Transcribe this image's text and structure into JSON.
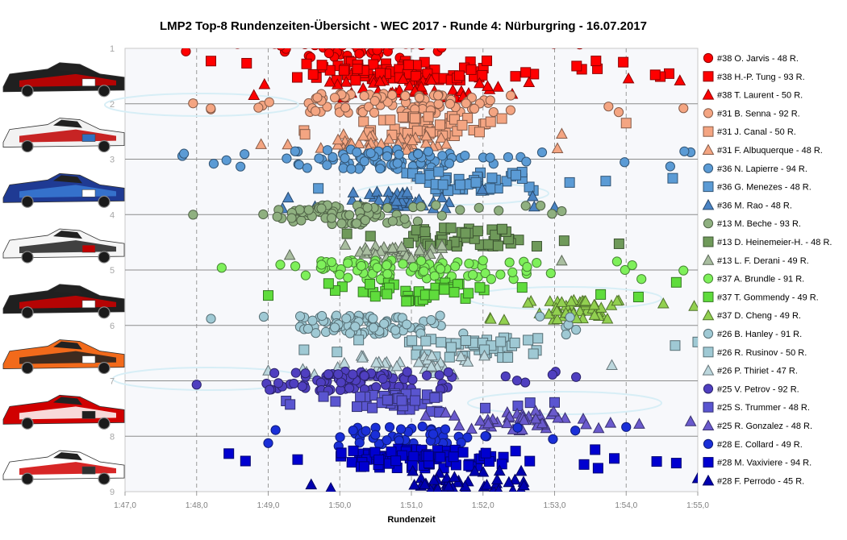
{
  "chart_data": {
    "type": "scatter",
    "title": "LMP2  Top-8  Rundenzeiten-Übersicht  - WEC 2017  - Runde  4:  Nürburgring  - 16.07.2017",
    "xlabel": "Rundenzeit",
    "ylabel": "",
    "x_ticks": [
      "1:47,0",
      "1:48,0",
      "1:49,0",
      "1:50,0",
      "1:51,0",
      "1:52,0",
      "1:53,0",
      "1:54,0",
      "1:55,0"
    ],
    "xlim": [
      107,
      115
    ],
    "y_ticks": [
      "1",
      "2",
      "3",
      "4",
      "5",
      "6",
      "7",
      "8",
      "9"
    ],
    "ylim": [
      1,
      9
    ],
    "grid": true,
    "legend_position": "right",
    "series": [
      {
        "name": "#38 O. Jarvis - 48 R.",
        "color": "#ff0000",
        "marker": "circle",
        "row": 1.0,
        "laps": 48,
        "x_range": [
          107.85,
          113.35
        ]
      },
      {
        "name": "#38 H.-P. Tung - 93 R.",
        "color": "#ff0000",
        "marker": "square",
        "row": 1.4,
        "laps": 93,
        "x_range": [
          108.2,
          114.6
        ]
      },
      {
        "name": "#38 T. Laurent - 50 R.",
        "color": "#ff0000",
        "marker": "triangle",
        "row": 1.72,
        "laps": 50,
        "x_range": [
          108.8,
          114.75
        ]
      },
      {
        "name": "#31 B. Senna - 92 R.",
        "color": "#f4a582",
        "marker": "circle",
        "row": 2.0,
        "laps": 92,
        "x_range": [
          107.95,
          114.8
        ]
      },
      {
        "name": "#31 J. Canal - 50 R.",
        "color": "#f4a582",
        "marker": "square",
        "row": 2.4,
        "laps": 50,
        "x_range": [
          109.5,
          114.0
        ]
      },
      {
        "name": "#31 F. Albuquerque - 48 R.",
        "color": "#f4a582",
        "marker": "triangle",
        "row": 2.72,
        "laps": 48,
        "x_range": [
          108.9,
          113.1
        ]
      },
      {
        "name": "#36 N. Lapierre - 94 R.",
        "color": "#5b9bd5",
        "marker": "circle",
        "row": 3.0,
        "laps": 94,
        "x_range": [
          107.8,
          114.9
        ]
      },
      {
        "name": "#36 G. Menezes - 48 R.",
        "color": "#5b9bd5",
        "marker": "square",
        "row": 3.4,
        "laps": 48,
        "x_range": [
          109.7,
          114.65
        ]
      },
      {
        "name": "#36 M. Rao - 48 R.",
        "color": "#4a84c4",
        "marker": "triangle",
        "row": 3.72,
        "laps": 48,
        "x_range": [
          109.2,
          113.0
        ]
      },
      {
        "name": "#13 M. Beche - 93 R.",
        "color": "#8fb080",
        "marker": "circle",
        "row": 4.0,
        "laps": 93,
        "x_range": [
          107.95,
          113.1
        ]
      },
      {
        "name": "#13 D. Heinemeier-H. - 48 R.",
        "color": "#6f9a5a",
        "marker": "square",
        "row": 4.4,
        "laps": 48,
        "x_range": [
          110.1,
          113.9
        ]
      },
      {
        "name": "#13 L. F. Derani - 49 R.",
        "color": "#a9bea0",
        "marker": "triangle",
        "row": 4.72,
        "laps": 49,
        "x_range": [
          109.3,
          113.1
        ]
      },
      {
        "name": "#37 A. Brundle - 91 R.",
        "color": "#7ef05a",
        "marker": "circle",
        "row": 5.0,
        "laps": 91,
        "x_range": [
          108.35,
          114.8
        ]
      },
      {
        "name": "#37 T. Gommendy - 49 R.",
        "color": "#5fdc3c",
        "marker": "square",
        "row": 5.4,
        "laps": 49,
        "x_range": [
          109.0,
          114.7
        ]
      },
      {
        "name": "#37 D. Cheng - 49 R.",
        "color": "#92d050",
        "marker": "triangle",
        "row": 5.72,
        "laps": 49,
        "x_range": [
          112.1,
          114.95
        ]
      },
      {
        "name": "#26 B. Hanley - 91 R.",
        "color": "#9fc9d4",
        "marker": "circle",
        "row": 6.0,
        "laps": 91,
        "x_range": [
          108.2,
          113.3
        ]
      },
      {
        "name": "#26 R. Rusinov - 50 R.",
        "color": "#9fc9d4",
        "marker": "square",
        "row": 6.4,
        "laps": 50,
        "x_range": [
          109.5,
          115.0
        ]
      },
      {
        "name": "#26 P. Thiriet - 47 R.",
        "color": "#bcd7dd",
        "marker": "triangle",
        "row": 6.72,
        "laps": 47,
        "x_range": [
          109.0,
          113.8
        ]
      },
      {
        "name": "#25 V. Petrov - 92 R.",
        "color": "#4f3fc0",
        "marker": "circle",
        "row": 7.0,
        "laps": 92,
        "x_range": [
          108.0,
          113.3
        ]
      },
      {
        "name": "#25 S. Trummer - 48 R.",
        "color": "#5a55d0",
        "marker": "square",
        "row": 7.4,
        "laps": 48,
        "x_range": [
          109.25,
          113.0
        ]
      },
      {
        "name": "#25 R. Gonzalez - 48 R.",
        "color": "#6a5acd",
        "marker": "triangle",
        "row": 7.72,
        "laps": 48,
        "x_range": [
          111.2,
          114.9
        ]
      },
      {
        "name": "#28 E. Collard - 49 R.",
        "color": "#1a2fd8",
        "marker": "circle",
        "row": 8.0,
        "laps": 49,
        "x_range": [
          109.0,
          114.0
        ]
      },
      {
        "name": "#28 M. Vaxiviere - 94 R.",
        "color": "#0000d0",
        "marker": "square",
        "row": 8.4,
        "laps": 94,
        "x_range": [
          108.45,
          114.7
        ]
      },
      {
        "name": "#28 F. Perrodo - 45 R.",
        "color": "#0000b0",
        "marker": "triangle",
        "row": 8.8,
        "laps": 45,
        "x_range": [
          109.6,
          115.0
        ]
      }
    ],
    "car_thumbnails": [
      {
        "number": "#38",
        "livery": [
          "#202020",
          "#d00000",
          "#ffffff"
        ]
      },
      {
        "number": "#31",
        "livery": [
          "#f2f2f2",
          "#c00000",
          "#3070c0"
        ]
      },
      {
        "number": "#36",
        "livery": [
          "#1f3a93",
          "#3a7bd5",
          "#ffffff"
        ]
      },
      {
        "number": "#13",
        "livery": [
          "#f5f5f5",
          "#202020",
          "#c00000"
        ]
      },
      {
        "number": "#37",
        "livery": [
          "#202020",
          "#d00000",
          "#ffffff"
        ]
      },
      {
        "number": "#26",
        "livery": [
          "#f26a1b",
          "#202020",
          "#ffffff"
        ]
      },
      {
        "number": "#25",
        "livery": [
          "#d00000",
          "#ffffff",
          "#202020"
        ]
      },
      {
        "number": "#28",
        "livery": [
          "#ffffff",
          "#d00000",
          "#303030"
        ]
      }
    ]
  }
}
